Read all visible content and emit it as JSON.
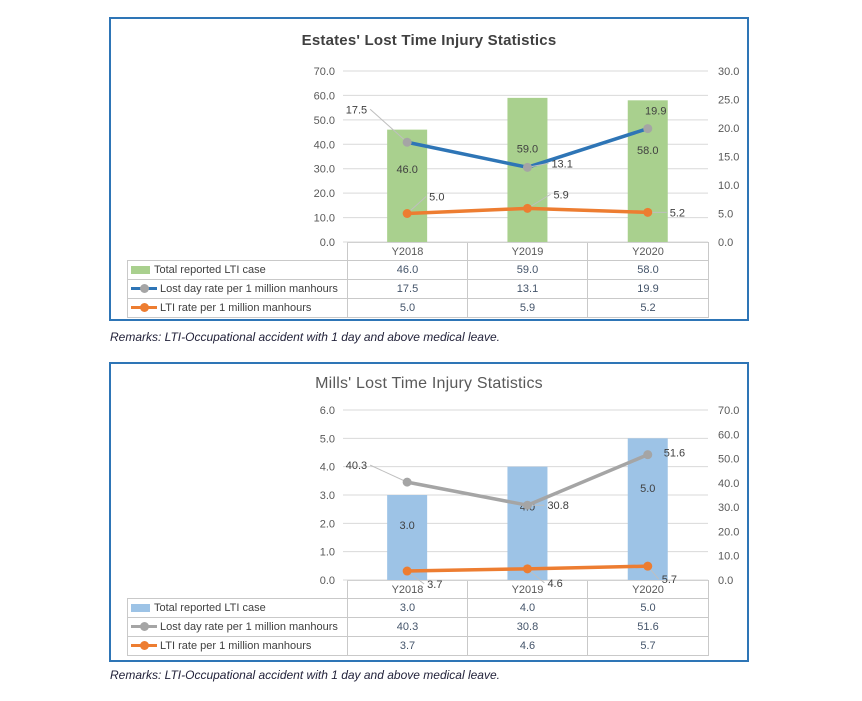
{
  "page": {
    "background": "#FFFFFF",
    "panel_border_color": "#2E75B6",
    "gridline_color": "#D9D9D9",
    "table_border_color": "#C9C9C9"
  },
  "chart_data": [
    {
      "type": "bar",
      "subtype": "combo-bar-line",
      "title": "Estates' Lost Time Injury Statistics",
      "categories": [
        "Y2018",
        "Y2019",
        "Y2020"
      ],
      "series": [
        {
          "name": "Total reported LTI case",
          "type": "bar",
          "axis": "left",
          "color": "#A9D08E",
          "values": [
            46.0,
            59.0,
            58.0
          ]
        },
        {
          "name": "Lost day rate per 1 million manhours",
          "type": "line",
          "axis": "right",
          "color": "#2E75B6",
          "marker_color": "#A5A5A5",
          "values": [
            17.5,
            13.1,
            19.9
          ]
        },
        {
          "name": "LTI rate per 1 million manhours",
          "type": "line",
          "axis": "right",
          "color": "#ED7D31",
          "marker_color": "#ED7D31",
          "values": [
            5.0,
            5.9,
            5.2
          ]
        }
      ],
      "left_axis": {
        "min": 0,
        "max": 70,
        "step": 10,
        "tick_labels": [
          "0.0",
          "10.0",
          "20.0",
          "30.0",
          "40.0",
          "50.0",
          "60.0",
          "70.0"
        ]
      },
      "right_axis": {
        "min": 0,
        "max": 30,
        "step": 5,
        "tick_labels": [
          "0.0",
          "5.0",
          "10.0",
          "15.0",
          "20.0",
          "25.0",
          "30.0"
        ]
      },
      "grid": true,
      "legend_position": "data-table",
      "data_labels": true,
      "remarks": "Remarks: LTI-Occupational accident with 1 day and above medical leave."
    },
    {
      "type": "bar",
      "subtype": "combo-bar-line",
      "title": "Mills' Lost Time Injury Statistics",
      "categories": [
        "Y2018",
        "Y2019",
        "Y2020"
      ],
      "series": [
        {
          "name": "Total reported LTI case",
          "type": "bar",
          "axis": "left",
          "color": "#9DC3E6",
          "values": [
            3.0,
            4.0,
            5.0
          ]
        },
        {
          "name": "Lost day rate per 1 million manhours",
          "type": "line",
          "axis": "right",
          "color": "#A5A5A5",
          "marker_color": "#A5A5A5",
          "values": [
            40.3,
            30.8,
            51.6
          ]
        },
        {
          "name": "LTI rate per 1 million manhours",
          "type": "line",
          "axis": "right",
          "color": "#ED7D31",
          "marker_color": "#ED7D31",
          "values": [
            3.7,
            4.6,
            5.7
          ]
        }
      ],
      "left_axis": {
        "min": 0,
        "max": 6,
        "step": 1,
        "tick_labels": [
          "0.0",
          "1.0",
          "2.0",
          "3.0",
          "4.0",
          "5.0",
          "6.0"
        ]
      },
      "right_axis": {
        "min": 0,
        "max": 70,
        "step": 10,
        "tick_labels": [
          "0.0",
          "10.0",
          "20.0",
          "30.0",
          "40.0",
          "50.0",
          "60.0",
          "70.0"
        ]
      },
      "grid": true,
      "legend_position": "data-table",
      "data_labels": true,
      "remarks": "Remarks: LTI-Occupational accident with 1 day and above medical leave."
    }
  ]
}
